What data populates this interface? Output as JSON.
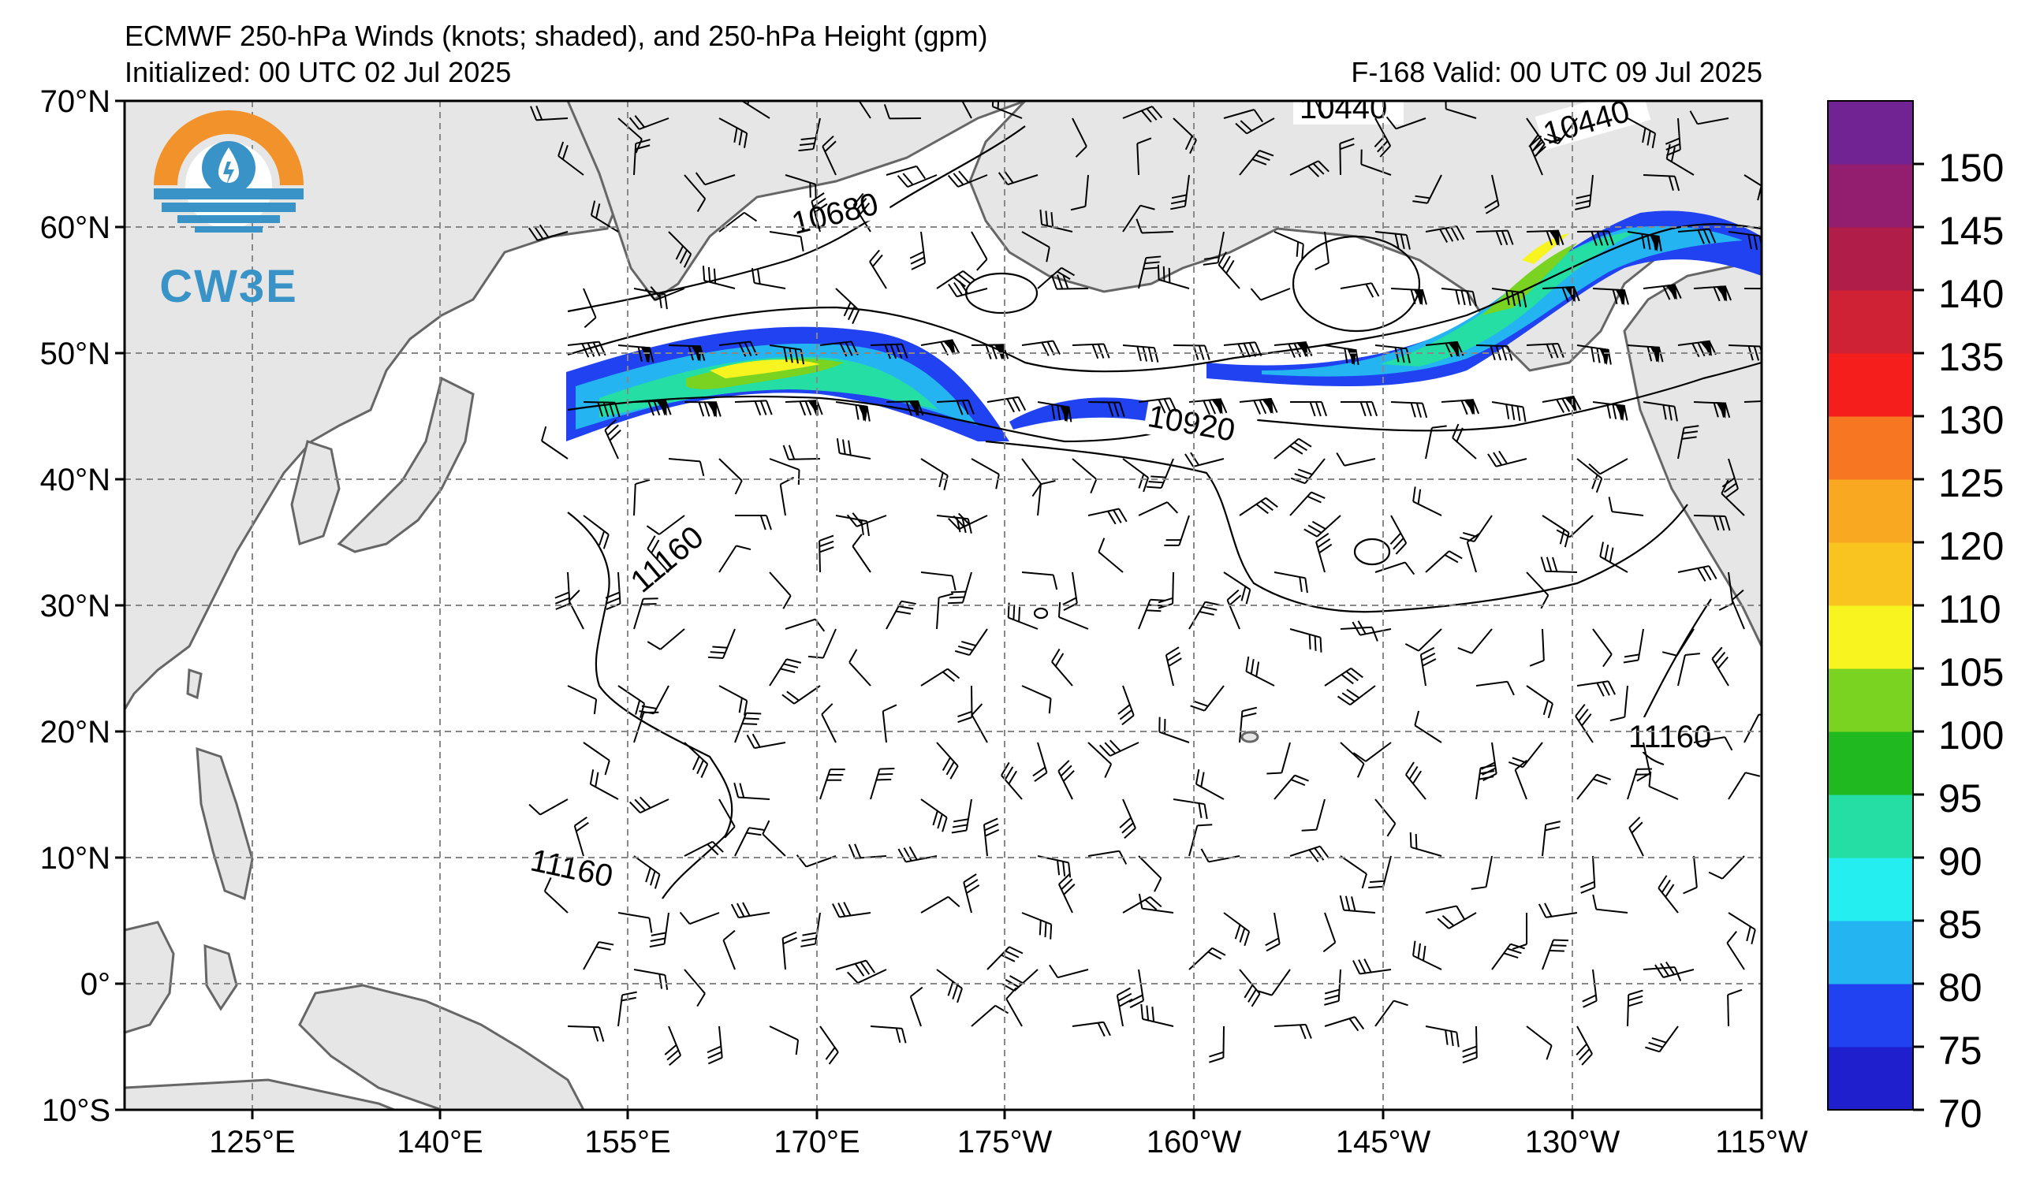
{
  "header": {
    "title": "ECMWF 250-hPa Winds (knots; shaded), and 250-hPa Height (gpm)",
    "initialized": "Initialized: 00 UTC 02 Jul 2025",
    "valid": "F-168  Valid: 00 UTC 09 Jul 2025"
  },
  "logo": {
    "text": "CW3E"
  },
  "map": {
    "lon_labels": [
      "125°E",
      "140°E",
      "155°E",
      "170°E",
      "175°W",
      "160°W",
      "145°W",
      "130°W",
      "115°W"
    ],
    "lat_labels": [
      "70°N",
      "60°N",
      "50°N",
      "40°N",
      "30°N",
      "20°N",
      "10°N",
      "0°",
      "10°S"
    ],
    "contour_labels": [
      "10680",
      "10440",
      "10440",
      "10920",
      "11160",
      "11160",
      "11160"
    ],
    "land_color": "#e6e6e6",
    "coast_color": "#666666"
  },
  "colorbar": {
    "labels": [
      "150",
      "145",
      "140",
      "135",
      "130",
      "125",
      "120",
      "110",
      "105",
      "100",
      "95",
      "90",
      "85",
      "80",
      "75",
      "70"
    ],
    "colors": [
      "#1f1fce",
      "#2042f0",
      "#24b4f2",
      "#24eef0",
      "#25dea3",
      "#20ba20",
      "#79d320",
      "#f8f420",
      "#f9c41f",
      "#f9a822",
      "#f77622",
      "#f61d1d",
      "#cf2235",
      "#b01d48",
      "#931d6e",
      "#712394"
    ]
  }
}
